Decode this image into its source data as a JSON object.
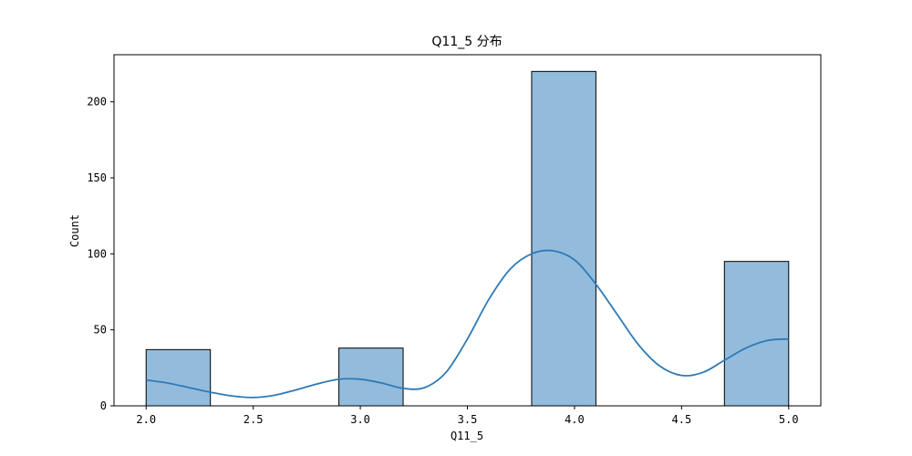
{
  "chart_data": {
    "type": "bar",
    "title": "Q11_5 分布",
    "xlabel": "Q11_5",
    "ylabel": "Count",
    "xlim": [
      1.85,
      5.15
    ],
    "ylim": [
      0,
      231
    ],
    "x_ticks": [
      2.0,
      2.5,
      3.0,
      3.5,
      4.0,
      4.5,
      5.0
    ],
    "x_tick_labels": [
      "2.0",
      "2.5",
      "3.0",
      "3.5",
      "4.0",
      "4.5",
      "5.0"
    ],
    "y_ticks": [
      0,
      50,
      100,
      150,
      200
    ],
    "y_tick_labels": [
      "0",
      "50",
      "100",
      "150",
      "200"
    ],
    "bin_width": 0.3,
    "bars": [
      {
        "x_start": 2.0,
        "x_end": 2.3,
        "value": 37
      },
      {
        "x_start": 3.2,
        "x_end": 3.5,
        "value": 0
      },
      {
        "x_start": 2.9,
        "x_end": 3.2,
        "value": 38
      },
      {
        "x_start": 3.8,
        "x_end": 4.1,
        "value": 220
      },
      {
        "x_start": 4.7,
        "x_end": 5.0,
        "value": 95
      }
    ],
    "kde": {
      "x": [
        2.0,
        2.1,
        2.2,
        2.3,
        2.4,
        2.5,
        2.6,
        2.7,
        2.8,
        2.9,
        3.0,
        3.1,
        3.2,
        3.3,
        3.4,
        3.5,
        3.6,
        3.7,
        3.8,
        3.9,
        4.0,
        4.1,
        4.2,
        4.3,
        4.4,
        4.5,
        4.6,
        4.7,
        4.8,
        4.9,
        5.0
      ],
      "y": [
        17,
        15,
        12,
        9,
        6.5,
        5.5,
        7,
        10.5,
        14.5,
        17.5,
        17.5,
        15,
        11.5,
        12,
        22,
        44,
        70,
        90,
        100,
        102,
        96,
        80,
        60,
        40,
        26,
        20,
        22,
        30,
        38,
        43,
        44
      ]
    },
    "colors": {
      "bar_fill": "#93bcdc",
      "bar_edge": "#000000",
      "kde_line": "#2e7ab8"
    },
    "grid": false,
    "legend": "none"
  }
}
